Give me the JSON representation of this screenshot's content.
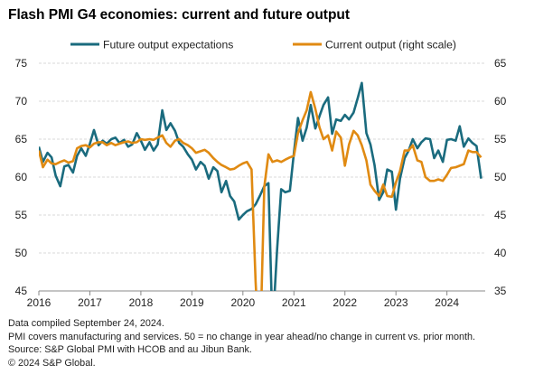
{
  "title": "Flash PMI G4 economies: current and future output",
  "notes": [
    "Data compiled September 24, 2024.",
    "PMI covers manufacturing and services. 50 = no change in year ahead/no change in current vs. prior month.",
    "Source: S&P Global PMI with HCOB and au Jibun Bank.",
    "© 2024 S&P Global."
  ],
  "colors": {
    "future": "#1a6b7e",
    "current": "#e08a12",
    "grid": "#d9d9d9",
    "axis": "#888888"
  },
  "chart_data": {
    "type": "line",
    "title": "Flash PMI G4 economies: current and future output",
    "x_axis": {
      "ticks": [
        "2016",
        "2017",
        "2018",
        "2019",
        "2020",
        "2021",
        "2022",
        "2023",
        "2024"
      ],
      "range": [
        2016.0,
        2024.75
      ]
    },
    "y_left": {
      "range": [
        45,
        75
      ],
      "ticks": [
        45,
        50,
        55,
        60,
        65,
        70,
        75
      ]
    },
    "y_right": {
      "range": [
        35,
        65
      ],
      "ticks": [
        35,
        40,
        45,
        50,
        55,
        60,
        65
      ]
    },
    "grid": true,
    "legend": {
      "position": "top",
      "entries": [
        "Future output expectations",
        "Current output (right scale)"
      ]
    },
    "series": [
      {
        "name": "Future output expectations",
        "axis": "left",
        "x": [
          2016.0,
          2016.08,
          2016.17,
          2016.25,
          2016.33,
          2016.42,
          2016.5,
          2016.58,
          2016.67,
          2016.75,
          2016.83,
          2016.92,
          2017.0,
          2017.08,
          2017.17,
          2017.25,
          2017.33,
          2017.42,
          2017.5,
          2017.58,
          2017.67,
          2017.75,
          2017.83,
          2017.92,
          2018.0,
          2018.08,
          2018.17,
          2018.25,
          2018.33,
          2018.42,
          2018.5,
          2018.58,
          2018.67,
          2018.75,
          2018.83,
          2018.92,
          2019.0,
          2019.08,
          2019.17,
          2019.25,
          2019.33,
          2019.42,
          2019.5,
          2019.58,
          2019.67,
          2019.75,
          2019.83,
          2019.92,
          2020.0,
          2020.08,
          2020.17,
          2020.25,
          2020.33,
          2020.42,
          2020.5,
          2020.58,
          2020.67,
          2020.75,
          2020.83,
          2020.92,
          2021.0,
          2021.08,
          2021.17,
          2021.25,
          2021.33,
          2021.42,
          2021.5,
          2021.58,
          2021.67,
          2021.75,
          2021.83,
          2021.92,
          2022.0,
          2022.08,
          2022.17,
          2022.25,
          2022.33,
          2022.42,
          2022.5,
          2022.58,
          2022.67,
          2022.75,
          2022.83,
          2022.92,
          2023.0,
          2023.08,
          2023.17,
          2023.25,
          2023.33,
          2023.42,
          2023.5,
          2023.58,
          2023.67,
          2023.75,
          2023.83,
          2023.92,
          2024.0,
          2024.08,
          2024.17,
          2024.25,
          2024.33,
          2024.42,
          2024.5,
          2024.58,
          2024.67
        ],
        "values": [
          64.0,
          62.0,
          63.2,
          62.6,
          60.2,
          58.8,
          61.4,
          61.6,
          60.6,
          62.8,
          63.8,
          62.8,
          64.4,
          66.2,
          64.2,
          64.8,
          64.4,
          65.0,
          65.2,
          64.5,
          64.9,
          64.0,
          64.3,
          65.8,
          64.8,
          63.6,
          64.6,
          63.5,
          64.3,
          68.8,
          66.2,
          67.1,
          66.1,
          64.5,
          64.0,
          63.0,
          62.3,
          61.0,
          62.0,
          61.5,
          59.8,
          61.3,
          60.8,
          58.0,
          59.5,
          57.5,
          56.8,
          54.4,
          55.0,
          55.5,
          55.8,
          56.4,
          57.5,
          58.8,
          59.2,
          39.8,
          50.5,
          58.4,
          58.0,
          58.2,
          63.2,
          67.8,
          64.8,
          66.5,
          69.5,
          66.4,
          68.0,
          69.5,
          70.5,
          65.7,
          67.6,
          67.4,
          68.2,
          67.6,
          68.5,
          70.4,
          72.4,
          65.8,
          64.3,
          61.6,
          57.0,
          58.0,
          61.0,
          60.7,
          55.7,
          59.8,
          62.5,
          63.5,
          65.0,
          63.8,
          64.6,
          65.1,
          65.0,
          62.5,
          63.5,
          62.0,
          64.9,
          65.0,
          64.8,
          66.7,
          64.0,
          65.1,
          64.5,
          64.1,
          59.8
        ]
      },
      {
        "name": "Current output (right scale)",
        "axis": "right",
        "x": [
          2016.0,
          2016.08,
          2016.17,
          2016.25,
          2016.33,
          2016.42,
          2016.5,
          2016.58,
          2016.67,
          2016.75,
          2016.83,
          2016.92,
          2017.0,
          2017.08,
          2017.17,
          2017.25,
          2017.33,
          2017.42,
          2017.5,
          2017.58,
          2017.67,
          2017.75,
          2017.83,
          2017.92,
          2018.0,
          2018.08,
          2018.17,
          2018.25,
          2018.33,
          2018.42,
          2018.5,
          2018.58,
          2018.67,
          2018.75,
          2018.83,
          2018.92,
          2019.0,
          2019.08,
          2019.17,
          2019.25,
          2019.33,
          2019.42,
          2019.5,
          2019.58,
          2019.67,
          2019.75,
          2019.83,
          2019.92,
          2020.0,
          2020.08,
          2020.17,
          2020.25,
          2020.33,
          2020.42,
          2020.5,
          2020.58,
          2020.67,
          2020.75,
          2020.83,
          2020.92,
          2021.0,
          2021.08,
          2021.17,
          2021.25,
          2021.33,
          2021.42,
          2021.5,
          2021.58,
          2021.67,
          2021.75,
          2021.83,
          2021.92,
          2022.0,
          2022.08,
          2022.17,
          2022.25,
          2022.33,
          2022.42,
          2022.5,
          2022.58,
          2022.67,
          2022.75,
          2022.83,
          2022.92,
          2023.0,
          2023.08,
          2023.17,
          2023.25,
          2023.33,
          2023.42,
          2023.5,
          2023.58,
          2023.67,
          2023.75,
          2023.83,
          2023.92,
          2024.0,
          2024.08,
          2024.17,
          2024.25,
          2024.33,
          2024.42,
          2024.5,
          2024.58,
          2024.67
        ],
        "values": [
          53.5,
          51.3,
          52.3,
          51.8,
          51.7,
          52.0,
          52.2,
          51.9,
          52.1,
          53.8,
          54.1,
          54.2,
          53.9,
          54.4,
          54.6,
          54.6,
          54.2,
          54.5,
          54.2,
          54.4,
          54.6,
          54.7,
          54.5,
          54.6,
          55.0,
          54.9,
          55.0,
          54.9,
          55.2,
          55.5,
          54.5,
          54.0,
          54.8,
          55.0,
          54.5,
          54.2,
          53.8,
          53.2,
          53.4,
          53.6,
          53.2,
          52.5,
          52.0,
          51.6,
          51.3,
          51.0,
          51.1,
          51.5,
          51.8,
          52.0,
          51.0,
          36.2,
          25.5,
          48.7,
          53.0,
          52.0,
          52.2,
          52.0,
          52.3,
          52.6,
          52.8,
          55.8,
          57.5,
          58.8,
          61.2,
          59.0,
          56.6,
          55.0,
          55.5,
          53.5,
          56.0,
          55.2,
          51.5,
          54.3,
          56.1,
          55.5,
          54.2,
          52.2,
          49.0,
          48.2,
          47.5,
          49.0,
          47.5,
          47.4,
          49.3,
          50.8,
          53.5,
          53.5,
          54.2,
          52.2,
          52.0,
          50.0,
          49.5,
          49.5,
          49.7,
          49.5,
          50.3,
          51.2,
          51.3,
          51.5,
          51.7,
          53.5,
          53.3,
          53.3,
          52.6
        ]
      }
    ]
  }
}
